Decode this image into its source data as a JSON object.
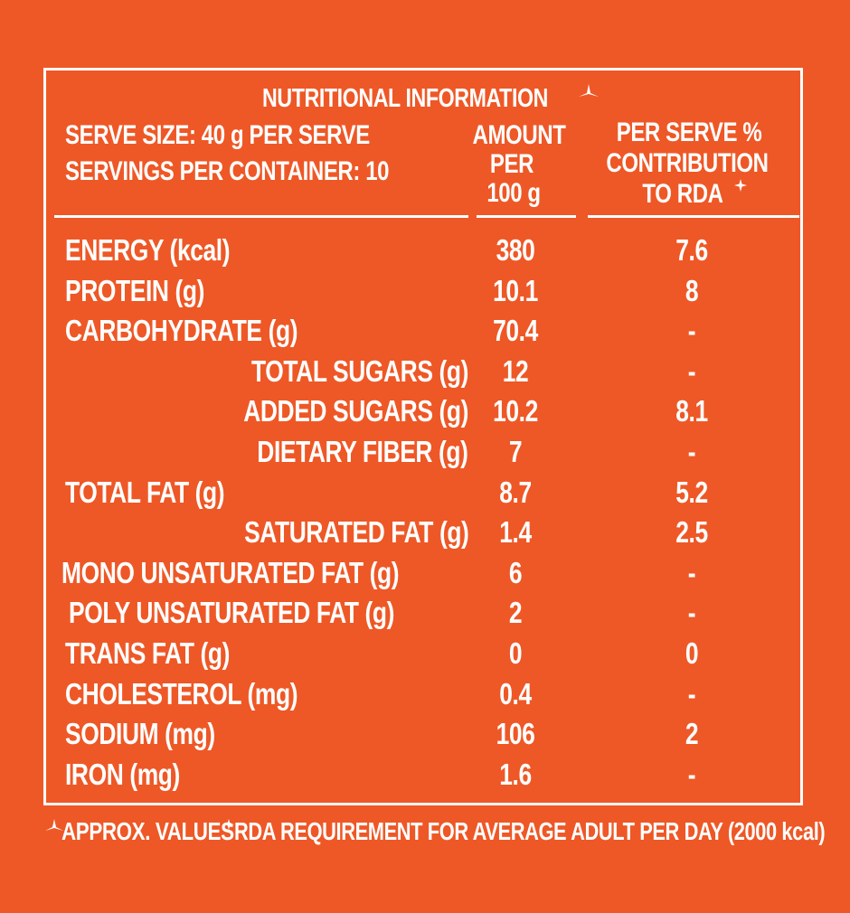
{
  "header": {
    "title": "NUTRITIONAL INFORMATION",
    "serve_size": "SERVE SIZE: 40 g PER SERVE",
    "servings": "SERVINGS PER CONTAINER: 10"
  },
  "columns": {
    "amount": [
      "AMOUNT",
      "PER",
      "100 g"
    ],
    "rda": [
      "PER SERVE %",
      "CONTRIBUTION",
      "TO RDA"
    ]
  },
  "table": {
    "rows": [
      [
        "ENERGY (kcal)",
        "380",
        "7.6"
      ],
      [
        "PROTEIN (g)",
        "10.1",
        "8"
      ],
      [
        "CARBOHYDRATE (g)",
        "70.4",
        "-"
      ],
      [
        "TOTAL SUGARS (g)",
        "12",
        "-"
      ],
      [
        "ADDED SUGARS (g)",
        "10.2",
        "8.1"
      ],
      [
        "DIETARY FIBER (g)",
        "7",
        "-"
      ],
      [
        "TOTAL FAT  (g)",
        "8.7",
        "5.2"
      ],
      [
        "SATURATED FAT (g)",
        "1.4",
        "2.5"
      ],
      [
        "MONO UNSATURATED FAT (g)",
        "6",
        "-"
      ],
      [
        "POLY UNSATURATED FAT  (g)",
        "2",
        "-"
      ],
      [
        "TRANS FAT  (g)",
        "0",
        "0"
      ],
      [
        "CHOLESTEROL  (mg)",
        "0.4",
        "-"
      ],
      [
        "SODIUM  (mg)",
        "106",
        "2"
      ],
      [
        "IRON  (mg)",
        "1.6",
        "-"
      ]
    ]
  },
  "footer": {
    "approx": "APPROX. VALUES",
    "rda": "RDA REQUIREMENT FOR AVERAGE ADULT PER DAY (2000 kcal)"
  }
}
